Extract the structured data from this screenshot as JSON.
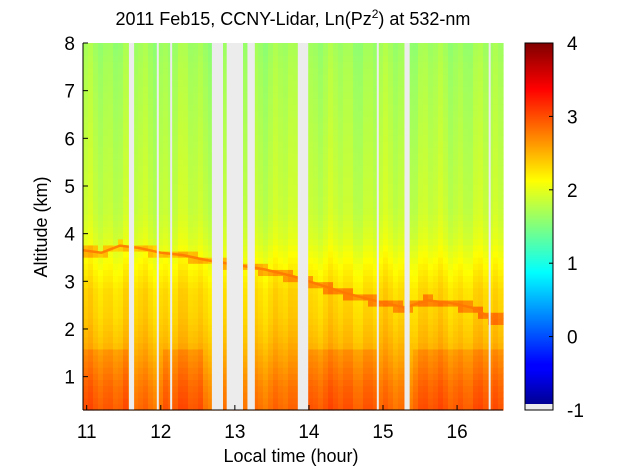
{
  "chart_data": {
    "type": "heatmap",
    "title": {
      "prefix": "2011 Feb15, CCNY-Lidar, Ln(Pz",
      "superscript": "2",
      "suffix": ") at 532-nm"
    },
    "xlabel": "Local time (hour)",
    "ylabel": "Altitude (km)",
    "xlim": [
      10.95,
      16.62
    ],
    "ylim": [
      0.3,
      8.0
    ],
    "xticks": [
      11,
      12,
      13,
      14,
      15,
      16
    ],
    "yticks": [
      1,
      2,
      3,
      4,
      5,
      6,
      7,
      8
    ],
    "colorbar": {
      "range": [
        -1,
        4
      ],
      "ticks": [
        -1,
        0,
        1,
        2,
        3,
        4
      ],
      "colormap": "jet",
      "bottom_color": "#ececec"
    },
    "missing_data_color": "#ececec",
    "data_gaps_hours": [
      [
        11.57,
        11.64
      ],
      [
        12.69,
        12.84
      ],
      [
        12.89,
        13.11
      ],
      [
        13.17,
        13.27
      ],
      [
        13.85,
        13.99
      ],
      [
        15.29,
        15.36
      ]
    ],
    "thin_gaps_hours": [
      11.96,
      12.14,
      14.93,
      16.44
    ],
    "value_profile_by_altitude_km": {
      "altitude": [
        0.3,
        0.8,
        1.3,
        1.8,
        2.3,
        2.8,
        3.3,
        3.9,
        4.5,
        5.5,
        6.5,
        7.5,
        8.0
      ],
      "value": [
        2.85,
        2.75,
        2.6,
        2.45,
        2.35,
        2.3,
        2.15,
        1.95,
        1.85,
        1.8,
        1.75,
        1.7,
        1.65
      ]
    },
    "boundary_layer_top_km": {
      "time": [
        10.95,
        11.2,
        11.45,
        11.7,
        12.0,
        12.3,
        12.6,
        13.0,
        13.4,
        13.8,
        14.0,
        14.5,
        15.0,
        15.3,
        15.6,
        15.9,
        16.2,
        16.5
      ],
      "altitude": [
        3.65,
        3.6,
        3.75,
        3.7,
        3.6,
        3.55,
        3.45,
        3.35,
        3.25,
        3.1,
        3.0,
        2.75,
        2.55,
        2.45,
        2.6,
        2.55,
        2.45,
        2.2
      ]
    }
  }
}
